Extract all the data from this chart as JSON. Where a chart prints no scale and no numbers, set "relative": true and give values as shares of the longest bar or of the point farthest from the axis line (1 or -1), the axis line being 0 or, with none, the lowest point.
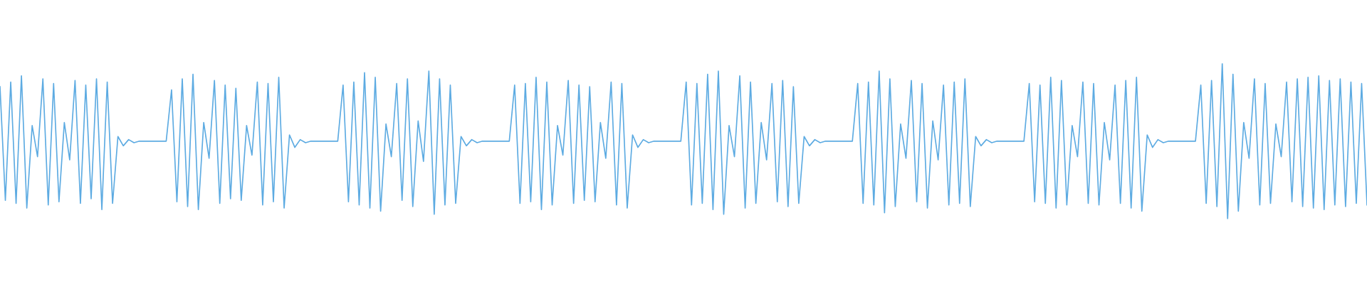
{
  "chart_data": {
    "type": "line",
    "relative": true,
    "categories": [
      null,
      null,
      null,
      null,
      null,
      null,
      null,
      null,
      null,
      null,
      null,
      null,
      null,
      null,
      null,
      null,
      null,
      null,
      null,
      null,
      null,
      null,
      null,
      null,
      null,
      null,
      null,
      null,
      null,
      null,
      null,
      null,
      null,
      null,
      null,
      null,
      null,
      null,
      null,
      null,
      null,
      null,
      null,
      null,
      null,
      null,
      null,
      null,
      null,
      null,
      null,
      null,
      null,
      null,
      null,
      null,
      null,
      null,
      null,
      null,
      null,
      null,
      null,
      null,
      null,
      null,
      null,
      null,
      null,
      null,
      null,
      null,
      null,
      null,
      null,
      null,
      null,
      null,
      null,
      null,
      null,
      null,
      null,
      null,
      null,
      null,
      null,
      null,
      null,
      null,
      null,
      null,
      null,
      null,
      null,
      null,
      null,
      null,
      null,
      null,
      null,
      null,
      null,
      null,
      null,
      null,
      null,
      null,
      null,
      null,
      null,
      null,
      null,
      null,
      null,
      null,
      null,
      null,
      null,
      null,
      null,
      null,
      null,
      null,
      null,
      null,
      null,
      null,
      null,
      null,
      null,
      null,
      null,
      null,
      null,
      null,
      null,
      null,
      null,
      null,
      null,
      null,
      null,
      null,
      null,
      null,
      null,
      null,
      null,
      null,
      null,
      null,
      null,
      null,
      null,
      null,
      null,
      null,
      null,
      null,
      null,
      null,
      null,
      null,
      null,
      null,
      null,
      null,
      null,
      null,
      null,
      null,
      null,
      null,
      null,
      null,
      null,
      null,
      null,
      null,
      null,
      null,
      null,
      null,
      null,
      null,
      null,
      null,
      null,
      null,
      null,
      null,
      null,
      null,
      null,
      null,
      null,
      null,
      null,
      null,
      null,
      null,
      null,
      null,
      null,
      null,
      null,
      null,
      null,
      null,
      null,
      null,
      null,
      null,
      null,
      null,
      null,
      null,
      null,
      null,
      null,
      null,
      null,
      null,
      null,
      null,
      null,
      null,
      null,
      null,
      null,
      null,
      null,
      null,
      null,
      null,
      null,
      null,
      null,
      null,
      null,
      null,
      null,
      null,
      null,
      null,
      null,
      null,
      null,
      null,
      null,
      null,
      null,
      null,
      null,
      null
    ],
    "series": [
      {
        "color": "#5dabe2",
        "values": [
          0.85,
          0.12,
          0.88,
          0.1,
          0.92,
          0.07,
          0.6,
          0.4,
          0.9,
          0.09,
          0.87,
          0.11,
          0.62,
          0.38,
          0.89,
          0.1,
          0.86,
          0.13,
          0.9,
          0.06,
          0.88,
          0.1,
          0.53,
          0.47,
          0.51,
          0.49,
          0.5,
          0.5,
          0.5,
          0.5,
          0.5,
          0.5,
          0.83,
          0.11,
          0.9,
          0.08,
          0.93,
          0.06,
          0.62,
          0.39,
          0.89,
          0.1,
          0.86,
          0.13,
          0.84,
          0.12,
          0.6,
          0.41,
          0.88,
          0.09,
          0.87,
          0.11,
          0.91,
          0.07,
          0.54,
          0.46,
          0.51,
          0.49,
          0.5,
          0.5,
          0.5,
          0.5,
          0.5,
          0.5,
          0.86,
          0.11,
          0.88,
          0.09,
          0.94,
          0.07,
          0.91,
          0.05,
          0.61,
          0.4,
          0.87,
          0.12,
          0.9,
          0.08,
          0.63,
          0.37,
          0.95,
          0.03,
          0.9,
          0.09,
          0.86,
          0.1,
          0.53,
          0.47,
          0.51,
          0.49,
          0.5,
          0.5,
          0.5,
          0.5,
          0.5,
          0.5,
          0.86,
          0.1,
          0.87,
          0.11,
          0.91,
          0.06,
          0.88,
          0.09,
          0.6,
          0.41,
          0.89,
          0.1,
          0.86,
          0.12,
          0.85,
          0.11,
          0.62,
          0.39,
          0.88,
          0.09,
          0.87,
          0.07,
          0.54,
          0.46,
          0.51,
          0.49,
          0.5,
          0.5,
          0.5,
          0.5,
          0.5,
          0.5,
          0.88,
          0.09,
          0.87,
          0.1,
          0.93,
          0.06,
          0.95,
          0.03,
          0.6,
          0.4,
          0.92,
          0.07,
          0.88,
          0.1,
          0.62,
          0.38,
          0.87,
          0.11,
          0.89,
          0.08,
          0.85,
          0.1,
          0.53,
          0.47,
          0.51,
          0.49,
          0.5,
          0.5,
          0.5,
          0.5,
          0.5,
          0.5,
          0.87,
          0.1,
          0.88,
          0.09,
          0.95,
          0.04,
          0.9,
          0.08,
          0.61,
          0.39,
          0.89,
          0.11,
          0.87,
          0.07,
          0.63,
          0.38,
          0.86,
          0.09,
          0.88,
          0.1,
          0.9,
          0.08,
          0.53,
          0.47,
          0.51,
          0.49,
          0.5,
          0.5,
          0.5,
          0.5,
          0.5,
          0.5,
          0.87,
          0.11,
          0.86,
          0.1,
          0.91,
          0.07,
          0.89,
          0.09,
          0.6,
          0.4,
          0.88,
          0.1,
          0.87,
          0.09,
          0.62,
          0.38,
          0.86,
          0.1,
          0.89,
          0.07,
          0.91,
          0.05,
          0.54,
          0.46,
          0.51,
          0.49,
          0.5,
          0.5,
          0.5,
          0.5,
          0.5,
          0.5,
          0.86,
          0.1,
          0.89,
          0.08,
          1.0,
          0.0,
          0.93,
          0.05,
          0.62,
          0.39,
          0.9,
          0.09,
          0.87,
          0.1,
          0.61,
          0.4,
          0.88,
          0.11,
          0.9,
          0.08,
          0.91,
          0.07,
          0.92,
          0.06,
          0.89,
          0.09,
          0.9,
          0.08,
          0.88,
          0.1,
          0.87,
          0.09
        ]
      }
    ]
  }
}
